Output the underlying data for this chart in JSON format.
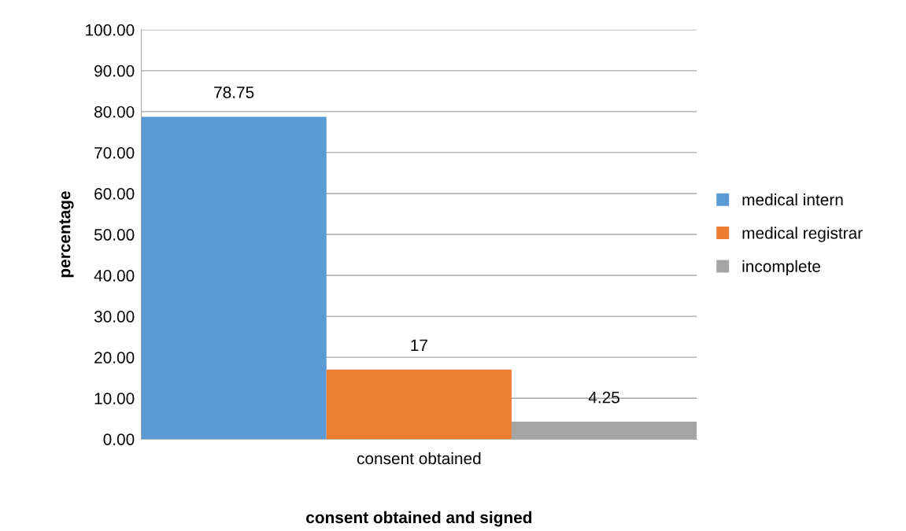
{
  "chart_data": {
    "type": "bar",
    "xlabel": "consent obtained and signed",
    "ylabel": "percentage",
    "categories": [
      "consent obtained"
    ],
    "series": [
      {
        "name": "medical intern",
        "color": "#5b9bd5",
        "values": [
          78.75
        ]
      },
      {
        "name": "medical registrar",
        "color": "#ed7d31",
        "values": [
          17
        ]
      },
      {
        "name": "incomplete",
        "color": "#a5a5a5",
        "values": [
          4.25
        ]
      }
    ],
    "ylim": [
      0,
      100
    ],
    "yticks": [
      {
        "value": 0,
        "label": "0.00"
      },
      {
        "value": 10,
        "label": "10.00"
      },
      {
        "value": 20,
        "label": "20.00"
      },
      {
        "value": 30,
        "label": "30.00"
      },
      {
        "value": 40,
        "label": "40.00"
      },
      {
        "value": 50,
        "label": "50.00"
      },
      {
        "value": 60,
        "label": "60.00"
      },
      {
        "value": 70,
        "label": "70.00"
      },
      {
        "value": 80,
        "label": "80.00"
      },
      {
        "value": 90,
        "label": "90.00"
      },
      {
        "value": 100,
        "label": "100.00"
      }
    ],
    "grid": "y",
    "legend": "right",
    "data_labels": true
  }
}
